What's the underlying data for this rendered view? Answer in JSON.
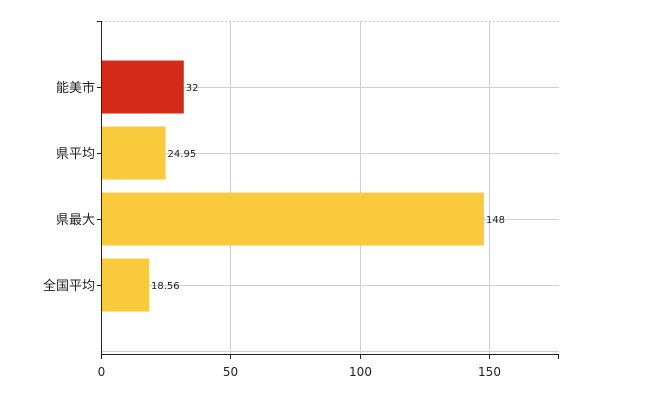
{
  "chart_data": {
    "type": "bar",
    "orientation": "horizontal",
    "categories": [
      "能美市",
      "県平均",
      "県最大",
      "全国平均"
    ],
    "values": [
      32,
      24.95,
      148,
      18.56
    ],
    "value_labels": [
      "32",
      "24.95",
      "148",
      "18.56"
    ],
    "bar_colors": [
      "#d42a1a",
      "#f9cb3c",
      "#f9cb3c",
      "#f9cb3c"
    ],
    "xlim": [
      0,
      177
    ],
    "xticks": [
      0,
      50,
      100,
      150
    ],
    "xtick_labels": [
      "0",
      "50",
      "100",
      "150"
    ],
    "grid": true,
    "title": "",
    "xlabel": "",
    "ylabel": ""
  }
}
